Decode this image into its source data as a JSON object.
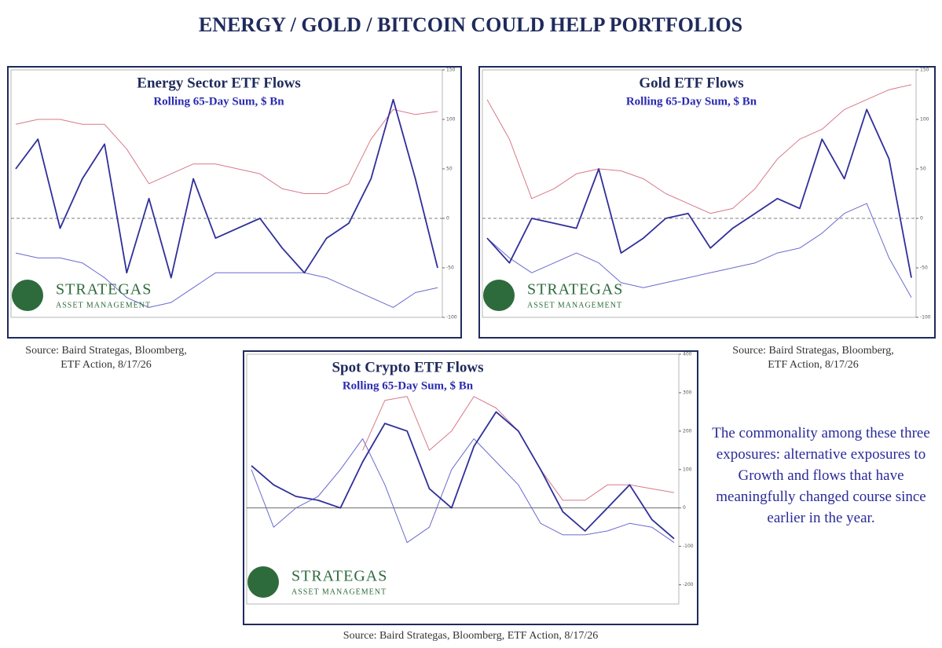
{
  "title": "ENERGY / GOLD / BITCOIN COULD HELP PORTFOLIOS",
  "note": "The commonality among these three exposures: alternative exposures to Growth and flows that have meaningfully changed course since earlier in the year.",
  "logo": {
    "name": "STRATEGAS",
    "tagline": "ASSET MANAGEMENT"
  },
  "chart_data": [
    {
      "type": "line",
      "title": "Energy Sector ETF Flows",
      "subtitle": "Rolling 65-Day Sum, $ Bn",
      "source": "Source: Baird Strategas, Bloomberg, ETF Action, 8/17/26",
      "categories": [
        null,
        null,
        null,
        null,
        null,
        null,
        null,
        null,
        null,
        null,
        null,
        null,
        null,
        null,
        null,
        null,
        null,
        null,
        null,
        null
      ],
      "ylim": [
        -100,
        150
      ],
      "yticks": [
        -100,
        -50,
        0,
        50,
        100,
        150
      ],
      "zero_line": "dashed",
      "series": [
        {
          "color": "#2f2f9a",
          "values": [
            50,
            80,
            -10,
            40,
            75,
            -55,
            20,
            -60,
            40,
            -20,
            -10,
            0,
            -30,
            -55,
            -20,
            -5,
            40,
            120,
            40,
            -50
          ]
        },
        {
          "color": "#d77a8a",
          "values": [
            95,
            100,
            100,
            95,
            95,
            70,
            35,
            45,
            55,
            55,
            50,
            45,
            30,
            25,
            25,
            35,
            80,
            110,
            105,
            108
          ]
        },
        {
          "color": "#6a6ad0",
          "values": [
            -35,
            -40,
            -40,
            -45,
            -60,
            -80,
            -90,
            -85,
            -70,
            -55,
            -55,
            -55,
            -55,
            -55,
            -60,
            -70,
            -80,
            -90,
            -75,
            -70
          ]
        }
      ]
    },
    {
      "type": "line",
      "title": "Gold ETF Flows",
      "subtitle": "Rolling 65-Day Sum, $ Bn",
      "source": "Source: Baird Strategas, Bloomberg, ETF Action, 8/17/26",
      "categories": [
        null,
        null,
        null,
        null,
        null,
        null,
        null,
        null,
        null,
        null,
        null,
        null,
        null,
        null,
        null,
        null,
        null,
        null,
        null,
        null
      ],
      "ylim": [
        -100,
        150
      ],
      "yticks": [
        -100,
        -50,
        0,
        50,
        100,
        150
      ],
      "zero_line": "dashed",
      "series": [
        {
          "color": "#2f2f9a",
          "values": [
            -20,
            -45,
            0,
            -5,
            -10,
            50,
            -35,
            -20,
            0,
            5,
            -30,
            -10,
            5,
            20,
            10,
            80,
            40,
            110,
            60,
            -60
          ]
        },
        {
          "color": "#d77a8a",
          "values": [
            120,
            80,
            20,
            30,
            45,
            50,
            48,
            40,
            25,
            15,
            5,
            10,
            30,
            60,
            80,
            90,
            110,
            120,
            130,
            135
          ]
        },
        {
          "color": "#6a6ad0",
          "values": [
            -20,
            -40,
            -55,
            -45,
            -35,
            -45,
            -65,
            -70,
            -65,
            -60,
            -55,
            -50,
            -45,
            -35,
            -30,
            -15,
            5,
            15,
            -40,
            -80
          ]
        }
      ]
    },
    {
      "type": "line",
      "title": "Spot Crypto ETF Flows",
      "subtitle": "Rolling 65-Day Sum, $ Bn",
      "source": "Source: Baird Strategas, Bloomberg, ETF Action, 8/17/26",
      "categories": [
        null,
        null,
        null,
        null,
        null,
        null,
        null,
        null,
        null,
        null,
        null,
        null,
        null,
        null,
        null,
        null,
        null,
        null,
        null,
        null
      ],
      "ylim": [
        -250,
        400
      ],
      "yticks": [
        -200,
        -100,
        0,
        100,
        200,
        300,
        400
      ],
      "zero_line": "solid",
      "series": [
        {
          "color": "#2f2f9a",
          "values": [
            110,
            60,
            30,
            20,
            0,
            120,
            220,
            200,
            50,
            0,
            160,
            250,
            200,
            100,
            -10,
            -60,
            0,
            60,
            -30,
            -80
          ]
        },
        {
          "color": "#d77a8a",
          "values": [
            null,
            null,
            null,
            null,
            null,
            150,
            280,
            290,
            150,
            200,
            290,
            260,
            200,
            100,
            20,
            20,
            60,
            60,
            50,
            40
          ]
        },
        {
          "color": "#6a6ad0",
          "values": [
            100,
            -50,
            0,
            30,
            100,
            180,
            60,
            -90,
            -50,
            100,
            180,
            120,
            60,
            -40,
            -70,
            -70,
            -60,
            -40,
            -50,
            -90
          ]
        }
      ]
    }
  ]
}
